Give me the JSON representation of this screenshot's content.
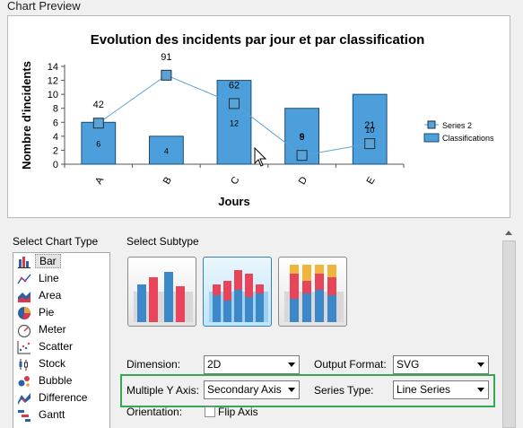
{
  "preview": {
    "section_title": "Chart Preview",
    "chart_data": {
      "type": "bar",
      "title": "Evolution des incidents par jour et par classification",
      "xlabel": "Jours",
      "ylabel": "Nombre d'incidents",
      "categories": [
        "A",
        "B",
        "C",
        "D",
        "E"
      ],
      "ylim": [
        0,
        14
      ],
      "yticks": [
        0,
        2,
        4,
        6,
        8,
        10,
        12,
        14
      ],
      "legend_position": "right",
      "series": [
        {
          "name": "Classifications",
          "kind": "bar",
          "values": [
            6,
            4,
            12,
            8,
            10
          ],
          "data_labels": [
            "6",
            "4",
            "12",
            "8",
            "10"
          ],
          "color": "#4c9fdb"
        },
        {
          "name": "Series 2",
          "kind": "line",
          "axis": "secondary",
          "values": [
            42,
            91,
            62,
            9,
            21
          ],
          "data_labels": [
            "42",
            "91",
            "62",
            "9",
            "21"
          ],
          "secondary_ylim": [
            0,
            100
          ],
          "color": "#5aa3d6"
        }
      ]
    }
  },
  "chart_type": {
    "label": "Select Chart Type",
    "items": [
      {
        "label": "Bar",
        "icon": "bar-chart-icon",
        "selected": true
      },
      {
        "label": "Line",
        "icon": "line-chart-icon"
      },
      {
        "label": "Area",
        "icon": "area-chart-icon"
      },
      {
        "label": "Pie",
        "icon": "pie-chart-icon"
      },
      {
        "label": "Meter",
        "icon": "meter-chart-icon"
      },
      {
        "label": "Scatter",
        "icon": "scatter-chart-icon"
      },
      {
        "label": "Stock",
        "icon": "stock-chart-icon"
      },
      {
        "label": "Bubble",
        "icon": "bubble-chart-icon"
      },
      {
        "label": "Difference",
        "icon": "difference-chart-icon"
      },
      {
        "label": "Gantt",
        "icon": "gantt-chart-icon"
      }
    ]
  },
  "subtype": {
    "label": "Select Subtype",
    "options": [
      "side-by-side",
      "stacked",
      "percent-stacked"
    ],
    "selected": "stacked"
  },
  "settings": {
    "dimension_label": "Dimension:",
    "dimension_value": "2D",
    "output_format_label": "Output Format:",
    "output_format_value": "SVG",
    "multiple_y_axis_label": "Multiple Y Axis:",
    "multiple_y_axis_value": "Secondary Axis",
    "series_type_label": "Series Type:",
    "series_type_value": "Line Series",
    "orientation_label": "Orientation:",
    "flip_axis_label": "Flip Axis",
    "flip_axis_checked": false
  },
  "colors": {
    "bar_fill": "#4c9fdb",
    "bar_border": "#1b4d73",
    "line": "#5aa3d6",
    "highlight": "#34a853"
  }
}
